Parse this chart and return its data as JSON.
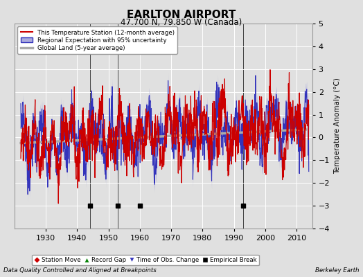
{
  "title": "EARLTON AIRPORT",
  "subtitle": "47.700 N, 79.850 W (Canada)",
  "ylabel": "Temperature Anomaly (°C)",
  "ylim": [
    -4,
    5
  ],
  "yticks": [
    -4,
    -3,
    -2,
    -1,
    0,
    1,
    2,
    3,
    4,
    5
  ],
  "xlim": [
    1920,
    2015
  ],
  "xticks": [
    1930,
    1940,
    1950,
    1960,
    1970,
    1980,
    1990,
    2000,
    2010
  ],
  "bg_color": "#e0e0e0",
  "plot_bg_color": "#e0e0e0",
  "grid_color": "#ffffff",
  "empirical_breaks": [
    1944,
    1953,
    1960,
    1993
  ],
  "footer_left": "Data Quality Controlled and Aligned at Breakpoints",
  "footer_right": "Berkeley Earth",
  "legend_line1": "This Temperature Station (12-month average)",
  "legend_line2": "Regional Expectation with 95% uncertainty",
  "legend_line3": "Global Land (5-year average)",
  "station_color": "#cc0000",
  "regional_color": "#3333bb",
  "regional_band_color": "#aaaadd",
  "global_color": "#aaaaaa"
}
